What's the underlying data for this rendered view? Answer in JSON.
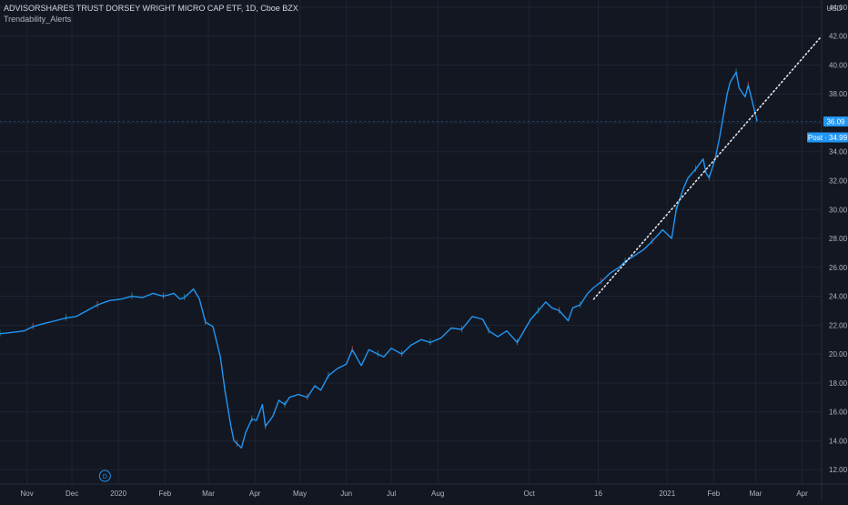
{
  "header": {
    "title": "ADVISORSHARES TRUST DORSEY WRIGHT MICRO CAP ETF, 1D, Cboe BZX",
    "indicator": "Trendability_Alerts"
  },
  "colors": {
    "background": "#131722",
    "grid": "#1f2433",
    "price_line": "#2196f3",
    "trendline": "#e0e3eb",
    "axis_text": "#b2b5be",
    "label_bg": "#2196f3",
    "label_text": "#ffffff",
    "up_wick": "#26a69a",
    "down_wick": "#ef5350"
  },
  "chart_data": {
    "type": "line",
    "y_axis_unit": "USD",
    "ylim": [
      11.0,
      44.5
    ],
    "y_ticks": [
      12.0,
      14.0,
      16.0,
      18.0,
      20.0,
      22.0,
      24.0,
      26.0,
      28.0,
      30.0,
      32.0,
      34.0,
      36.0,
      38.0,
      40.0,
      42.0,
      44.0
    ],
    "x_ticks": [
      "Nov",
      "Dec",
      "2020",
      "Feb",
      "Mar",
      "Apr",
      "May",
      "Jun",
      "Jul",
      "Aug",
      "Oct",
      "16",
      "2021",
      "Feb",
      "Mar",
      "Apr"
    ],
    "x_tick_dates": [
      "2019-11-01",
      "2019-12-01",
      "2020-01-01",
      "2020-02-01",
      "2020-03-01",
      "2020-04-01",
      "2020-05-01",
      "2020-06-01",
      "2020-07-01",
      "2020-08-01",
      "2020-10-01",
      "2020-11-16",
      "2021-01-01",
      "2021-02-01",
      "2021-03-01",
      "2021-04-01"
    ],
    "x_range": [
      "2019-10-14",
      "2021-04-14"
    ],
    "series": [
      {
        "values": [
          [
            "2019-10-14",
            21.4
          ],
          [
            "2019-10-22",
            21.5
          ],
          [
            "2019-10-30",
            21.6
          ],
          [
            "2019-11-05",
            21.9
          ],
          [
            "2019-11-12",
            22.1
          ],
          [
            "2019-11-20",
            22.3
          ],
          [
            "2019-11-27",
            22.5
          ],
          [
            "2019-12-04",
            22.6
          ],
          [
            "2019-12-11",
            23.0
          ],
          [
            "2019-12-18",
            23.4
          ],
          [
            "2019-12-26",
            23.7
          ],
          [
            "2020-01-03",
            23.8
          ],
          [
            "2020-01-10",
            24.0
          ],
          [
            "2020-01-17",
            23.9
          ],
          [
            "2020-01-24",
            24.2
          ],
          [
            "2020-01-31",
            24.0
          ],
          [
            "2020-02-07",
            24.2
          ],
          [
            "2020-02-11",
            23.8
          ],
          [
            "2020-02-14",
            23.9
          ],
          [
            "2020-02-20",
            24.5
          ],
          [
            "2020-02-24",
            23.8
          ],
          [
            "2020-02-28",
            22.2
          ],
          [
            "2020-03-04",
            21.9
          ],
          [
            "2020-03-09",
            19.8
          ],
          [
            "2020-03-12",
            17.5
          ],
          [
            "2020-03-16",
            15.0
          ],
          [
            "2020-03-18",
            14.0
          ],
          [
            "2020-03-20",
            13.8
          ],
          [
            "2020-03-23",
            13.5
          ],
          [
            "2020-03-26",
            14.6
          ],
          [
            "2020-03-30",
            15.5
          ],
          [
            "2020-04-02",
            15.4
          ],
          [
            "2020-04-06",
            16.5
          ],
          [
            "2020-04-08",
            15.0
          ],
          [
            "2020-04-13",
            15.7
          ],
          [
            "2020-04-17",
            16.8
          ],
          [
            "2020-04-21",
            16.5
          ],
          [
            "2020-04-24",
            17.0
          ],
          [
            "2020-04-30",
            17.2
          ],
          [
            "2020-05-06",
            17.0
          ],
          [
            "2020-05-11",
            17.8
          ],
          [
            "2020-05-15",
            17.5
          ],
          [
            "2020-05-20",
            18.5
          ],
          [
            "2020-05-26",
            19.0
          ],
          [
            "2020-06-01",
            19.3
          ],
          [
            "2020-06-05",
            20.3
          ],
          [
            "2020-06-11",
            19.2
          ],
          [
            "2020-06-16",
            20.3
          ],
          [
            "2020-06-22",
            20.0
          ],
          [
            "2020-06-26",
            19.8
          ],
          [
            "2020-07-01",
            20.4
          ],
          [
            "2020-07-08",
            20.0
          ],
          [
            "2020-07-14",
            20.6
          ],
          [
            "2020-07-21",
            21.0
          ],
          [
            "2020-07-27",
            20.8
          ],
          [
            "2020-08-03",
            21.1
          ],
          [
            "2020-08-10",
            21.8
          ],
          [
            "2020-08-17",
            21.7
          ],
          [
            "2020-08-24",
            22.6
          ],
          [
            "2020-08-31",
            22.4
          ],
          [
            "2020-09-04",
            21.6
          ],
          [
            "2020-09-10",
            21.2
          ],
          [
            "2020-09-16",
            21.6
          ],
          [
            "2020-09-23",
            20.8
          ],
          [
            "2020-09-28",
            21.7
          ],
          [
            "2020-10-02",
            22.4
          ],
          [
            "2020-10-07",
            23.0
          ],
          [
            "2020-10-12",
            23.6
          ],
          [
            "2020-10-16",
            23.2
          ],
          [
            "2020-10-21",
            23.0
          ],
          [
            "2020-10-27",
            22.3
          ],
          [
            "2020-10-30",
            23.2
          ],
          [
            "2020-11-04",
            23.4
          ],
          [
            "2020-11-09",
            24.2
          ],
          [
            "2020-11-13",
            24.6
          ],
          [
            "2020-11-18",
            25.0
          ],
          [
            "2020-11-24",
            25.6
          ],
          [
            "2020-11-30",
            26.0
          ],
          [
            "2020-12-04",
            26.4
          ],
          [
            "2020-12-10",
            26.8
          ],
          [
            "2020-12-16",
            27.2
          ],
          [
            "2020-12-22",
            27.8
          ],
          [
            "2020-12-29",
            28.6
          ],
          [
            "2021-01-04",
            28.0
          ],
          [
            "2021-01-07",
            30.0
          ],
          [
            "2021-01-12",
            31.5
          ],
          [
            "2021-01-15",
            32.2
          ],
          [
            "2021-01-20",
            32.8
          ],
          [
            "2021-01-25",
            33.5
          ],
          [
            "2021-01-27",
            32.5
          ],
          [
            "2021-01-29",
            32.2
          ],
          [
            "2021-02-02",
            33.5
          ],
          [
            "2021-02-05",
            35.0
          ],
          [
            "2021-02-08",
            36.8
          ],
          [
            "2021-02-10",
            38.0
          ],
          [
            "2021-02-12",
            38.8
          ],
          [
            "2021-02-16",
            39.5
          ],
          [
            "2021-02-18",
            38.4
          ],
          [
            "2021-02-22",
            37.8
          ],
          [
            "2021-02-24",
            38.6
          ],
          [
            "2021-02-26",
            37.8
          ],
          [
            "2021-03-02",
            36.1
          ]
        ]
      }
    ],
    "trendline": [
      [
        "2020-11-13",
        23.8
      ],
      [
        "2021-04-14",
        42.0
      ]
    ],
    "price_labels": [
      {
        "text": "36.09",
        "value": 36.09
      },
      {
        "text": "Post · 34.99",
        "value": 34.99
      }
    ],
    "dividend_marker": {
      "date": "2019-12-23",
      "text": "D"
    }
  }
}
